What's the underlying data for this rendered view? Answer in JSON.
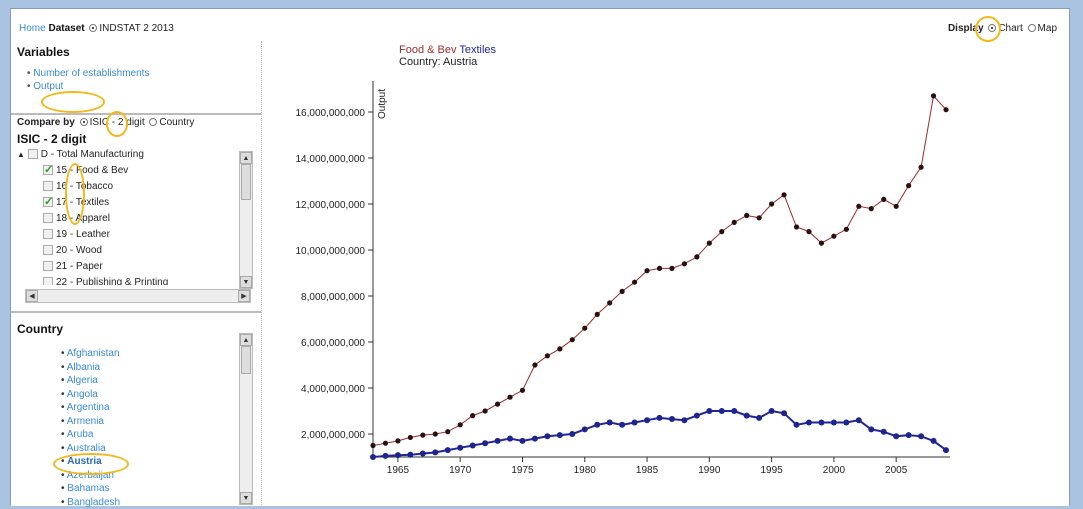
{
  "nav": {
    "home": "Home",
    "dataset_label": "Dataset",
    "dataset_value": "INDSTAT 2 2013",
    "display_label": "Display",
    "display_options": [
      "Chart",
      "Map"
    ]
  },
  "variables": {
    "title": "Variables",
    "items": [
      "Number of establishments",
      "Output"
    ]
  },
  "compare": {
    "label": "Compare by",
    "options": [
      "ISIC - 2 digit",
      "Country"
    ]
  },
  "isic": {
    "title": "ISIC - 2 digit",
    "root": "D - Total Manufacturing",
    "items": [
      {
        "label": "15 - Food & Bev",
        "checked": true
      },
      {
        "label": "16 - Tobacco",
        "checked": false
      },
      {
        "label": "17 - Textiles",
        "checked": true
      },
      {
        "label": "18 - Apparel",
        "checked": false
      },
      {
        "label": "19 - Leather",
        "checked": false
      },
      {
        "label": "20 - Wood",
        "checked": false
      },
      {
        "label": "21 - Paper",
        "checked": false
      },
      {
        "label": "22 - Publishing & Printing",
        "checked": false
      }
    ]
  },
  "country": {
    "title": "Country",
    "items": [
      "Afghanistan",
      "Albania",
      "Algeria",
      "Angola",
      "Argentina",
      "Armenia",
      "Aruba",
      "Australia",
      "Austria",
      "Azerbaijan",
      "Bahamas",
      "Bangladesh"
    ]
  },
  "chart_data": {
    "type": "line",
    "legend": [
      "Food & Bev",
      "Textiles"
    ],
    "subtitle": "Country: Austria",
    "ylabel": "Output",
    "xlim": [
      1963,
      2009
    ],
    "ylim": [
      1000000000,
      17000000000
    ],
    "xticks": [
      1965,
      1970,
      1975,
      1980,
      1985,
      1990,
      1995,
      2000,
      2005
    ],
    "yticks": [
      2000000000,
      4000000000,
      6000000000,
      8000000000,
      10000000000,
      12000000000,
      14000000000,
      16000000000
    ],
    "ytick_labels": [
      "2,000,000,000",
      "4,000,000,000",
      "6,000,000,000",
      "8,000,000,000",
      "10,000,000,000",
      "12,000,000,000",
      "14,000,000,000",
      "16,000,000,000"
    ],
    "x": [
      1963,
      1964,
      1965,
      1966,
      1967,
      1968,
      1969,
      1970,
      1971,
      1972,
      1973,
      1974,
      1975,
      1976,
      1977,
      1978,
      1979,
      1980,
      1981,
      1982,
      1983,
      1984,
      1985,
      1986,
      1987,
      1988,
      1989,
      1990,
      1991,
      1992,
      1993,
      1994,
      1995,
      1996,
      1997,
      1998,
      1999,
      2000,
      2001,
      2002,
      2003,
      2004,
      2005,
      2006,
      2007,
      2008,
      2009
    ],
    "series": [
      {
        "name": "Food & Bev",
        "color": "#9b2b2b",
        "values": [
          1500000000,
          1600000000,
          1700000000,
          1850000000,
          1950000000,
          2000000000,
          2100000000,
          2400000000,
          2800000000,
          3000000000,
          3300000000,
          3600000000,
          3900000000,
          5000000000,
          5400000000,
          5700000000,
          6100000000,
          6600000000,
          7200000000,
          7700000000,
          8200000000,
          8600000000,
          9100000000,
          9200000000,
          9200000000,
          9400000000,
          9700000000,
          10300000000,
          10800000000,
          11200000000,
          11500000000,
          11400000000,
          12000000000,
          12400000000,
          11000000000,
          10800000000,
          10300000000,
          10600000000,
          10900000000,
          11900000000,
          11800000000,
          12200000000,
          11900000000,
          12800000000,
          13600000000,
          16700000000,
          16100000000
        ]
      },
      {
        "name": "Textiles",
        "color": "#22259a",
        "values": [
          1000000000,
          1050000000,
          1080000000,
          1100000000,
          1150000000,
          1200000000,
          1300000000,
          1400000000,
          1500000000,
          1600000000,
          1700000000,
          1800000000,
          1700000000,
          1800000000,
          1900000000,
          1950000000,
          2000000000,
          2200000000,
          2400000000,
          2500000000,
          2400000000,
          2500000000,
          2600000000,
          2700000000,
          2650000000,
          2600000000,
          2800000000,
          3000000000,
          3000000000,
          3000000000,
          2800000000,
          2700000000,
          3000000000,
          2900000000,
          2400000000,
          2500000000,
          2500000000,
          2500000000,
          2500000000,
          2600000000,
          2200000000,
          2100000000,
          1900000000,
          1950000000,
          1900000000,
          1700000000,
          1300000000
        ]
      }
    ]
  }
}
